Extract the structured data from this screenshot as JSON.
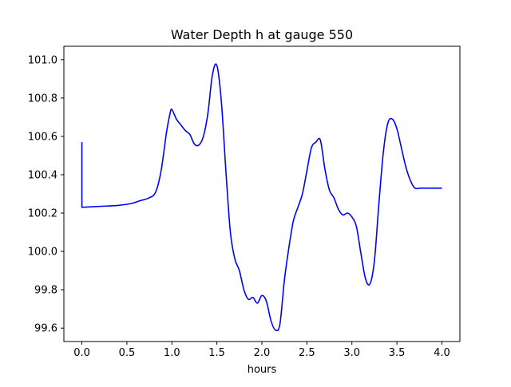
{
  "chart_data": {
    "type": "line",
    "title": "Water Depth h at gauge 550",
    "xlabel": "hours",
    "ylabel": "",
    "xlim": [
      -0.2,
      4.2
    ],
    "ylim": [
      99.53,
      101.07
    ],
    "xticks": [
      0.0,
      0.5,
      1.0,
      1.5,
      2.0,
      2.5,
      3.0,
      3.5,
      4.0
    ],
    "xtick_labels": [
      "0.0",
      "0.5",
      "1.0",
      "1.5",
      "2.0",
      "2.5",
      "3.0",
      "3.5",
      "4.0"
    ],
    "yticks": [
      99.6,
      99.8,
      100.0,
      100.2,
      100.4,
      100.6,
      100.8,
      101.0
    ],
    "ytick_labels": [
      "99.6",
      "99.8",
      "100.0",
      "100.2",
      "100.4",
      "100.6",
      "100.8",
      "101.0"
    ],
    "grid": false,
    "series": [
      {
        "color": "#0000ff",
        "x": [
          0.0,
          0.0,
          0.2,
          0.4,
          0.55,
          0.65,
          0.75,
          0.82,
          0.88,
          0.94,
          0.98,
          1.0,
          1.05,
          1.1,
          1.15,
          1.2,
          1.25,
          1.3,
          1.35,
          1.4,
          1.45,
          1.5,
          1.55,
          1.6,
          1.65,
          1.7,
          1.75,
          1.8,
          1.85,
          1.9,
          1.95,
          2.0,
          2.05,
          2.1,
          2.15,
          2.2,
          2.25,
          2.3,
          2.35,
          2.4,
          2.45,
          2.5,
          2.55,
          2.6,
          2.65,
          2.7,
          2.75,
          2.8,
          2.85,
          2.9,
          2.95,
          3.0,
          3.05,
          3.1,
          3.15,
          3.2,
          3.25,
          3.3,
          3.35,
          3.4,
          3.45,
          3.5,
          3.55,
          3.6,
          3.65,
          3.7,
          3.75,
          3.8,
          3.85,
          3.9,
          3.95,
          4.0
        ],
        "y": [
          100.57,
          100.23,
          100.235,
          100.24,
          100.25,
          100.265,
          100.28,
          100.31,
          100.42,
          100.62,
          100.72,
          100.74,
          100.69,
          100.66,
          100.63,
          100.61,
          100.56,
          100.555,
          100.6,
          100.72,
          100.92,
          100.97,
          100.78,
          100.42,
          100.1,
          99.96,
          99.9,
          99.8,
          99.75,
          99.76,
          99.73,
          99.77,
          99.74,
          99.64,
          99.59,
          99.62,
          99.85,
          100.02,
          100.16,
          100.23,
          100.3,
          100.42,
          100.54,
          100.57,
          100.58,
          100.43,
          100.32,
          100.28,
          100.22,
          100.19,
          100.2,
          100.18,
          100.13,
          99.99,
          99.86,
          99.83,
          99.95,
          100.25,
          100.52,
          100.67,
          100.69,
          100.64,
          100.54,
          100.44,
          100.37,
          100.33,
          100.33,
          100.33,
          100.33,
          100.33,
          100.33,
          100.33
        ]
      }
    ]
  }
}
